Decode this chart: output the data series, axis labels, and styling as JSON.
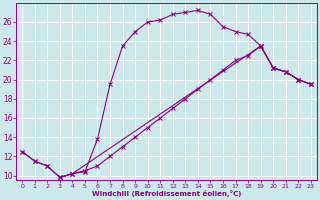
{
  "xlabel": "Windchill (Refroidissement éolien,°C)",
  "bg_color": "#cce8eb",
  "line_color": "#8b008b",
  "grid_color": "#ffffff",
  "xlim": [
    -0.5,
    23.5
  ],
  "ylim": [
    9.5,
    28
  ],
  "yticks": [
    10,
    12,
    14,
    16,
    18,
    20,
    22,
    24,
    26
  ],
  "xticks": [
    0,
    1,
    2,
    3,
    4,
    5,
    6,
    7,
    8,
    9,
    10,
    11,
    12,
    13,
    14,
    15,
    16,
    17,
    18,
    19,
    20,
    21,
    22,
    23
  ],
  "line1_x": [
    0,
    1,
    2,
    3,
    4,
    5,
    6,
    7,
    8,
    9,
    10,
    11,
    12,
    13,
    14,
    15,
    16,
    17,
    18,
    19,
    20,
    21,
    22,
    23
  ],
  "line1_y": [
    12.5,
    11.5,
    11.0,
    9.8,
    10.2,
    10.4,
    13.8,
    19.5,
    23.5,
    25.0,
    26.0,
    26.2,
    26.8,
    27.0,
    27.2,
    26.8,
    25.5,
    25.0,
    24.7,
    23.5,
    21.2,
    20.8,
    20.0,
    19.5
  ],
  "line2_x": [
    0,
    1,
    2,
    3,
    4,
    19,
    20,
    21,
    22,
    23
  ],
  "line2_y": [
    12.5,
    11.5,
    11.0,
    9.8,
    10.2,
    23.5,
    21.2,
    20.8,
    20.0,
    19.5
  ],
  "line3_x": [
    3,
    4,
    5,
    6,
    7,
    8,
    9,
    10,
    11,
    12,
    13,
    14,
    15,
    16,
    17,
    18,
    19,
    20,
    21,
    22,
    23
  ],
  "line3_y": [
    9.8,
    10.2,
    10.5,
    11.0,
    12.0,
    13.0,
    14.0,
    15.0,
    16.0,
    17.0,
    18.0,
    19.0,
    20.0,
    21.0,
    22.0,
    22.5,
    23.5,
    21.2,
    20.8,
    20.0,
    19.5
  ]
}
